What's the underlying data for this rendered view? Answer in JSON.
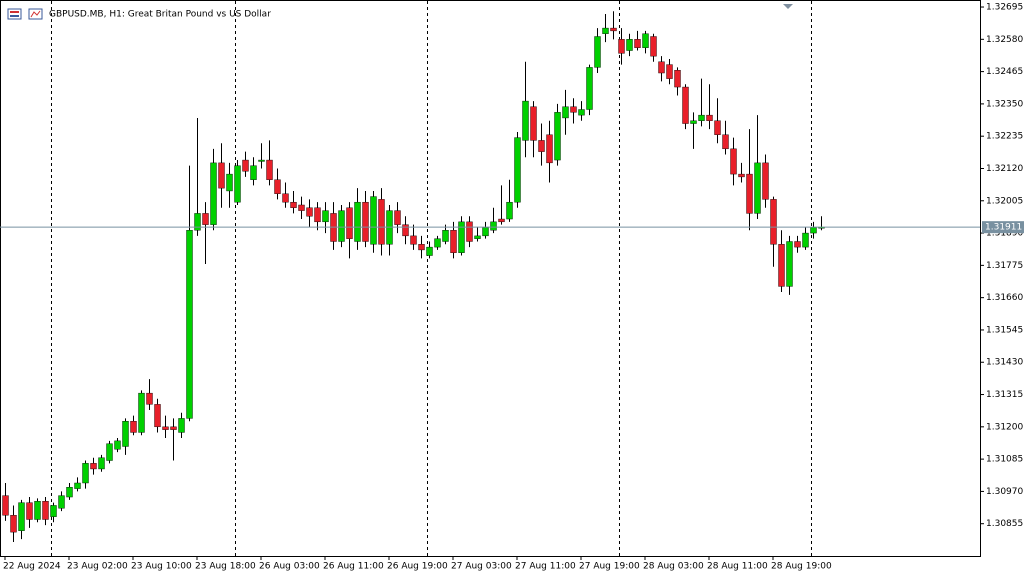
{
  "chart_data": {
    "type": "candlestick",
    "title": "GBPUSD.MB, H1:  Great Britan Pound vs US Dollar",
    "categories": [
      "22 Aug 2024",
      null,
      null,
      null,
      null,
      null,
      null,
      null,
      "23 Aug 02:00",
      null,
      null,
      null,
      null,
      null,
      null,
      null,
      "23 Aug 10:00",
      null,
      null,
      null,
      null,
      null,
      null,
      null,
      "23 Aug 18:00",
      null,
      null,
      null,
      null,
      null,
      null,
      null,
      "26 Aug 03:00",
      null,
      null,
      null,
      null,
      null,
      null,
      null,
      "26 Aug 11:00",
      null,
      null,
      null,
      null,
      null,
      null,
      null,
      "26 Aug 19:00",
      null,
      null,
      null,
      null,
      null,
      null,
      null,
      "27 Aug 03:00",
      null,
      null,
      null,
      null,
      null,
      null,
      null,
      "27 Aug 11:00",
      null,
      null,
      null,
      null,
      null,
      null,
      null,
      "27 Aug 19:00",
      null,
      null,
      null,
      null,
      null,
      null,
      null,
      "28 Aug 03:00",
      null,
      null,
      null,
      null,
      null,
      null,
      null,
      "28 Aug 11:00",
      null,
      null,
      null,
      null,
      null,
      null,
      null,
      "28 Aug 19:00",
      null,
      null,
      null,
      null,
      null,
      null
    ],
    "open": [
      1.30955,
      1.30885,
      1.3083,
      1.3093,
      1.3087,
      1.30935,
      1.3088,
      1.3091,
      1.3095,
      1.3098,
      1.31,
      1.3107,
      1.3105,
      1.3108,
      1.3112,
      1.3113,
      1.3122,
      1.3118,
      1.3132,
      1.3128,
      1.312,
      1.312,
      1.3118,
      1.3123,
      1.319,
      1.3196,
      1.3192,
      1.3214,
      1.3204,
      1.32,
      1.3215,
      1.3208,
      1.32145,
      1.3215,
      1.3208,
      1.3203,
      1.32,
      1.3199,
      1.3198,
      1.3198,
      1.3193,
      1.3196,
      1.3186,
      1.3198,
      1.3186,
      1.32,
      1.3185,
      1.3201,
      1.3185,
      1.3197,
      1.3192,
      1.3188,
      1.3185,
      1.3181,
      1.3184,
      1.3186,
      1.319,
      1.3182,
      1.3193,
      1.3187,
      1.3188,
      1.319,
      1.3194,
      1.3194,
      1.32,
      1.3222,
      1.3234,
      1.3222,
      1.3224,
      1.3215,
      1.323,
      1.3234,
      1.3231,
      1.3233,
      1.3248,
      1.326,
      1.3262,
      1.3258,
      1.3254,
      1.3258,
      1.3255,
      1.3259,
      1.325,
      1.3249,
      1.3247,
      1.3241,
      1.3228,
      1.3229,
      1.3231,
      1.3229,
      1.3224,
      1.3219,
      1.321,
      1.321,
      1.3196,
      1.3214,
      1.3201,
      1.3185,
      1.317,
      1.3186,
      1.3184,
      1.3189,
      1.3191
    ],
    "high": [
      1.31,
      1.3092,
      1.3094,
      1.3095,
      1.30945,
      1.3095,
      1.3093,
      1.3097,
      1.31,
      1.3102,
      1.3108,
      1.3109,
      1.311,
      1.3115,
      1.3116,
      1.3123,
      1.3124,
      1.3133,
      1.3137,
      1.313,
      1.3124,
      1.3123,
      1.3125,
      1.3213,
      1.323,
      1.32,
      1.3219,
      1.3221,
      1.3214,
      1.3215,
      1.3218,
      1.3216,
      1.3221,
      1.3222,
      1.3212,
      1.3207,
      1.3204,
      1.3202,
      1.3201,
      1.32,
      1.32,
      1.32,
      1.3199,
      1.32,
      1.3205,
      1.3204,
      1.3204,
      1.3205,
      1.3199,
      1.32,
      1.3195,
      1.3192,
      1.3188,
      1.3186,
      1.3188,
      1.3192,
      1.3193,
      1.3195,
      1.3195,
      1.3191,
      1.3193,
      1.3198,
      1.3206,
      1.3208,
      1.3225,
      1.325,
      1.3236,
      1.3228,
      1.3229,
      1.3235,
      1.324,
      1.3237,
      1.3236,
      1.3249,
      1.3262,
      1.3267,
      1.3268,
      1.3262,
      1.326,
      1.3261,
      1.3261,
      1.326,
      1.3252,
      1.3251,
      1.3248,
      1.3242,
      1.3232,
      1.3244,
      1.3242,
      1.3237,
      1.3229,
      1.3223,
      1.3214,
      1.3226,
      1.3231,
      1.3217,
      1.3202,
      1.319,
      1.3188,
      1.3188,
      1.3191,
      1.3193,
      1.3195
    ],
    "low": [
      1.30865,
      1.3079,
      1.308,
      1.3084,
      1.3086,
      1.3085,
      1.3086,
      1.309,
      1.3094,
      1.3097,
      1.3098,
      1.3103,
      1.3104,
      1.3107,
      1.3111,
      1.311,
      1.3117,
      1.3117,
      1.3126,
      1.3118,
      1.3116,
      1.3108,
      1.3116,
      1.3122,
      1.3188,
      1.3178,
      1.319,
      1.3198,
      1.3198,
      1.3199,
      1.3209,
      1.3206,
      1.3212,
      1.3206,
      1.3201,
      1.3198,
      1.3196,
      1.3194,
      1.3191,
      1.319,
      1.3189,
      1.3183,
      1.3184,
      1.318,
      1.3183,
      1.3184,
      1.3182,
      1.3181,
      1.3181,
      1.3189,
      1.3185,
      1.3183,
      1.318,
      1.318,
      1.3183,
      1.3185,
      1.318,
      1.3181,
      1.3184,
      1.3186,
      1.3187,
      1.3189,
      1.3192,
      1.3193,
      1.3198,
      1.3216,
      1.3216,
      1.3213,
      1.3207,
      1.3213,
      1.3224,
      1.3228,
      1.3229,
      1.3231,
      1.3246,
      1.3257,
      1.3258,
      1.3249,
      1.3252,
      1.3254,
      1.3253,
      1.325,
      1.3243,
      1.3242,
      1.3238,
      1.3226,
      1.3219,
      1.3227,
      1.3226,
      1.3221,
      1.3217,
      1.3206,
      1.3207,
      1.319,
      1.3194,
      1.3198,
      1.3177,
      1.3168,
      1.3167,
      1.3182,
      1.3183,
      1.3187,
      1.319
    ],
    "close": [
      1.30885,
      1.30825,
      1.3093,
      1.3087,
      1.30935,
      1.3087,
      1.3092,
      1.30955,
      1.30985,
      1.31,
      1.3107,
      1.3105,
      1.3109,
      1.3114,
      1.3115,
      1.3122,
      1.3118,
      1.3132,
      1.3128,
      1.312,
      1.3119,
      1.3119,
      1.3123,
      1.319,
      1.3196,
      1.3192,
      1.3214,
      1.3205,
      1.321,
      1.3213,
      1.3211,
      1.3213,
      1.3215,
      1.3208,
      1.3203,
      1.32,
      1.3198,
      1.3197,
      1.3195,
      1.3193,
      1.3197,
      1.3186,
      1.3197,
      1.3187,
      1.32,
      1.3186,
      1.3202,
      1.3185,
      1.3197,
      1.3192,
      1.3188,
      1.3185,
      1.3183,
      1.3184,
      1.3187,
      1.319,
      1.3182,
      1.3193,
      1.3186,
      1.3188,
      1.3191,
      1.3193,
      1.3193,
      1.32,
      1.3223,
      1.3236,
      1.3222,
      1.3218,
      1.3214,
      1.3232,
      1.3234,
      1.3232,
      1.3233,
      1.3248,
      1.3259,
      1.3262,
      1.3261,
      1.3253,
      1.3258,
      1.3255,
      1.326,
      1.3252,
      1.3246,
      1.3244,
      1.3241,
      1.3228,
      1.3229,
      1.3231,
      1.3229,
      1.3224,
      1.3219,
      1.321,
      1.3209,
      1.3196,
      1.3214,
      1.3201,
      1.3185,
      1.317,
      1.3186,
      1.3184,
      1.3189,
      1.3191,
      1.31911
    ],
    "up_color": "#00d000",
    "down_color": "#e8202a",
    "last_price": {
      "value": 1.31911,
      "label": "1.31911"
    },
    "ylim": [
      1.3074,
      1.3272
    ],
    "yticks": [
      1.32695,
      {
        "value": 1.3258,
        "label": "1.32580"
      },
      1.32465,
      {
        "value": 1.3235,
        "label": "1.32350"
      },
      1.32235,
      {
        "value": 1.3212,
        "label": "1.32120"
      },
      1.32005,
      {
        "value": 1.3189,
        "label": "1.31890"
      },
      1.31775,
      {
        "value": 1.3166,
        "label": "1.31660"
      },
      1.31545,
      {
        "value": 1.3143,
        "label": "1.31430"
      },
      1.31315,
      {
        "value": 1.312,
        "label": "1.31200"
      },
      1.31085,
      {
        "value": 1.3097,
        "label": "1.30970"
      },
      1.30855
    ]
  }
}
